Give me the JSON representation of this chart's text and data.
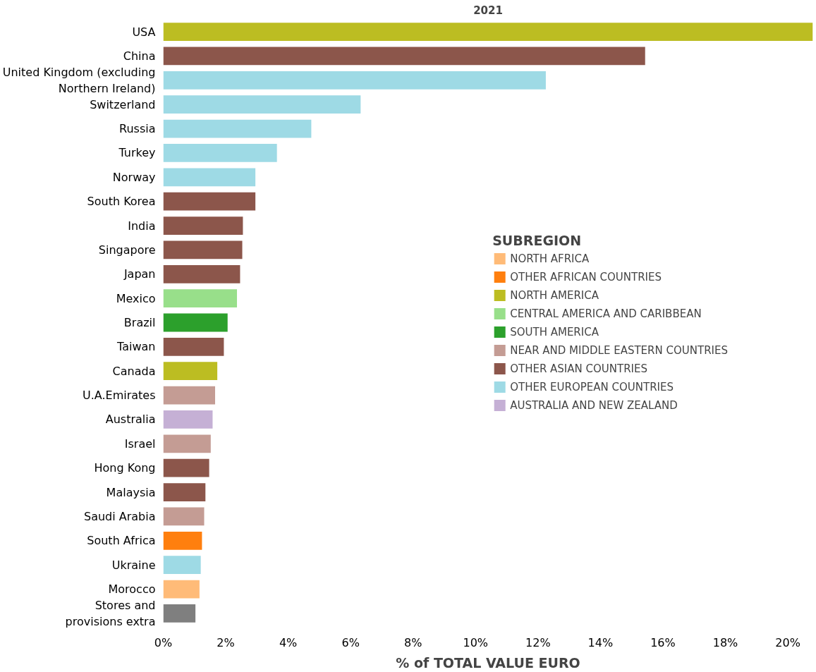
{
  "chart_data": {
    "type": "bar",
    "orientation": "horizontal",
    "title": "2021",
    "xlabel": "% of TOTAL VALUE EURO",
    "legend_title": "SUBREGION",
    "legend": "right",
    "grid": false,
    "categories": [
      "USA",
      "China",
      "United Kingdom (excluding Northern Ireland)",
      "Switzerland",
      "Russia",
      "Turkey",
      "Norway",
      "South Korea",
      "India",
      "Singapore",
      "Japan",
      "Mexico",
      "Brazil",
      "Taiwan",
      "Canada",
      "U.A.Emirates",
      "Australia",
      "Israel",
      "Hong Kong",
      "Malaysia",
      "Saudi Arabia",
      "South Africa",
      "Ukraine",
      "Morocco",
      "Stores and provisions extra"
    ],
    "xlim": [
      0,
      20.8
    ],
    "xticks": [
      {
        "value": 0,
        "label": "0%"
      },
      {
        "value": 2,
        "label": "2%"
      },
      {
        "value": 4,
        "label": "4%"
      },
      {
        "value": 6,
        "label": "6%"
      },
      {
        "value": 8,
        "label": "8%"
      },
      {
        "value": 10,
        "label": "10%"
      },
      {
        "value": 12,
        "label": "12%"
      },
      {
        "value": 14,
        "label": "14%"
      },
      {
        "value": 16,
        "label": "16%"
      },
      {
        "value": 18,
        "label": "18%"
      },
      {
        "value": 20,
        "label": "20%"
      }
    ],
    "series": [
      {
        "name": "NORTH AFRICA",
        "color": "#ffbb78",
        "values": [
          null,
          null,
          null,
          null,
          null,
          null,
          null,
          null,
          null,
          null,
          null,
          null,
          null,
          null,
          null,
          null,
          null,
          null,
          null,
          null,
          null,
          null,
          null,
          1.16,
          null
        ]
      },
      {
        "name": "OTHER AFRICAN COUNTRIES",
        "color": "#ff7f0e",
        "values": [
          null,
          null,
          null,
          null,
          null,
          null,
          null,
          null,
          null,
          null,
          null,
          null,
          null,
          null,
          null,
          null,
          null,
          null,
          null,
          null,
          null,
          1.24,
          null,
          null,
          null
        ]
      },
      {
        "name": "NORTH AMERICA",
        "color": "#bcbd22",
        "values": [
          20.8,
          null,
          null,
          null,
          null,
          null,
          null,
          null,
          null,
          null,
          null,
          null,
          null,
          null,
          1.73,
          null,
          null,
          null,
          null,
          null,
          null,
          null,
          null,
          null,
          null
        ]
      },
      {
        "name": "CENTRAL AMERICA AND CARIBBEAN",
        "color": "#98df8a",
        "values": [
          null,
          null,
          null,
          null,
          null,
          null,
          null,
          null,
          null,
          null,
          null,
          2.36,
          null,
          null,
          null,
          null,
          null,
          null,
          null,
          null,
          null,
          null,
          null,
          null,
          null
        ]
      },
      {
        "name": "SOUTH AMERICA",
        "color": "#2ca02c",
        "values": [
          null,
          null,
          null,
          null,
          null,
          null,
          null,
          null,
          null,
          null,
          null,
          null,
          2.06,
          null,
          null,
          null,
          null,
          null,
          null,
          null,
          null,
          null,
          null,
          null,
          null
        ]
      },
      {
        "name": "NEAR AND MIDDLE EASTERN COUNTRIES",
        "color": "#c49c94",
        "values": [
          null,
          null,
          null,
          null,
          null,
          null,
          null,
          null,
          null,
          null,
          null,
          null,
          null,
          null,
          null,
          1.66,
          null,
          1.52,
          null,
          null,
          1.31,
          null,
          null,
          null,
          null
        ]
      },
      {
        "name": "OTHER ASIAN COUNTRIES",
        "color": "#8c564b",
        "values": [
          null,
          15.43,
          null,
          null,
          null,
          null,
          null,
          2.95,
          2.55,
          2.53,
          2.46,
          null,
          null,
          1.94,
          null,
          null,
          null,
          null,
          1.47,
          1.35,
          null,
          null,
          null,
          null,
          null
        ]
      },
      {
        "name": "OTHER EUROPEAN COUNTRIES",
        "color": "#9edae5",
        "values": [
          null,
          null,
          12.25,
          6.32,
          4.74,
          3.64,
          2.95,
          null,
          null,
          null,
          null,
          null,
          null,
          null,
          null,
          null,
          null,
          null,
          null,
          null,
          null,
          null,
          1.2,
          null,
          null
        ]
      },
      {
        "name": "AUSTRALIA AND NEW ZEALAND",
        "color": "#c5b0d5",
        "values": [
          null,
          null,
          null,
          null,
          null,
          null,
          null,
          null,
          null,
          null,
          null,
          null,
          null,
          null,
          null,
          null,
          1.58,
          null,
          null,
          null,
          null,
          null,
          null,
          null,
          null
        ]
      },
      {
        "color": "#7f7f7f",
        "values": [
          null,
          null,
          null,
          null,
          null,
          null,
          null,
          null,
          null,
          null,
          null,
          null,
          null,
          null,
          null,
          null,
          null,
          null,
          null,
          null,
          null,
          null,
          null,
          null,
          1.03
        ]
      }
    ]
  }
}
